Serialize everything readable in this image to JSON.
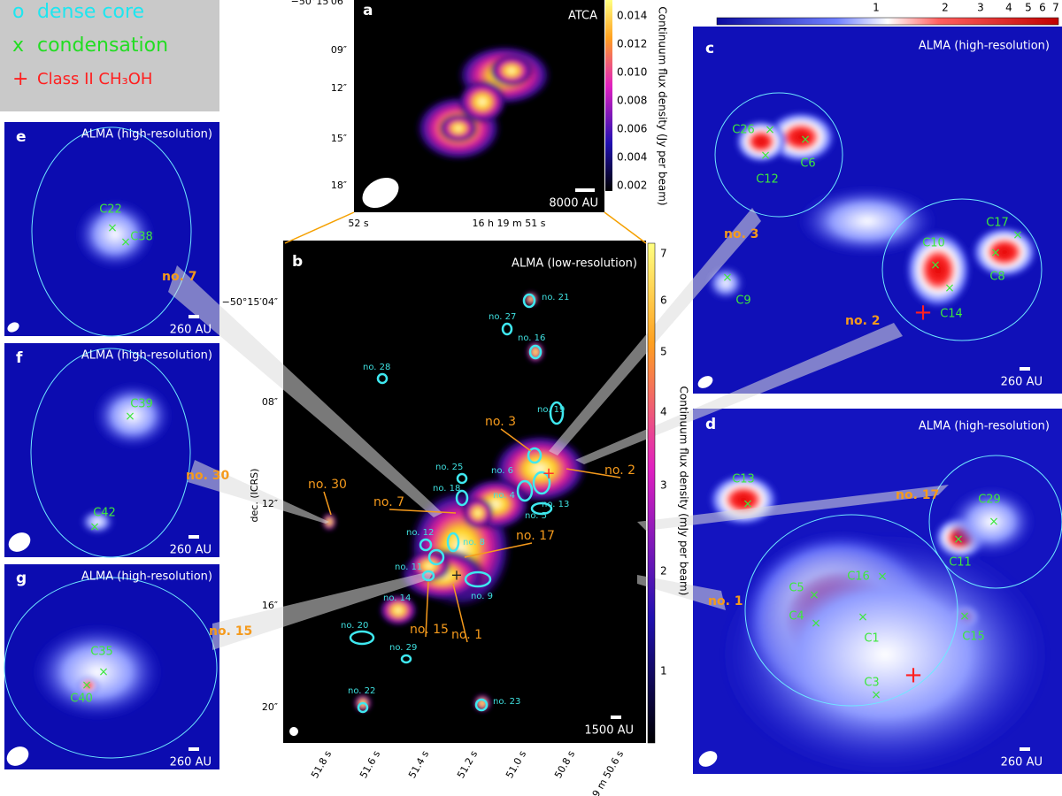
{
  "legend": {
    "items": [
      {
        "symbol": "o",
        "label": "dense core"
      },
      {
        "symbol": "x",
        "label": "condensation"
      },
      {
        "symbol": "+",
        "label": "Class II CH₃OH"
      }
    ]
  },
  "panels": {
    "a": {
      "label": "a",
      "title": "ATCA",
      "scale": "8000 AU",
      "colorbar_label": "Continuum flux density (Jy per beam)",
      "colorbar_ticks": [
        "0.014",
        "0.012",
        "0.010",
        "0.008",
        "0.006",
        "0.004",
        "0.002"
      ],
      "y_ticks": [
        "−50°15′06″",
        "09″",
        "12″",
        "15″",
        "18″"
      ],
      "x_ticks": [
        "52 s",
        "16 h 19 m 51 s"
      ]
    },
    "b": {
      "label": "b",
      "title": "ALMA (low-resolution)",
      "scale": "1500 AU",
      "colorbar_label": "Continuum flux density (mJy per beam)",
      "colorbar_ticks": [
        "7",
        "6",
        "5",
        "4",
        "3",
        "2",
        "1"
      ],
      "y_axis_label": "dec. (ICRS)",
      "y_ticks": [
        "−50°15′04″",
        "08″",
        "12″",
        "16″",
        "20″"
      ],
      "x_ticks": [
        "51.8 s",
        "51.6 s",
        "51.4 s",
        "51.2 s",
        "51.0 s",
        "50.8 s",
        "16 h 19 m 50.6 s"
      ],
      "cores": [
        "no. 21",
        "no. 27",
        "no. 16",
        "no. 28",
        "no. 19",
        "no. 25",
        "no. 18",
        "no. 6",
        "no. 4",
        "no. 5",
        "no. 13",
        "no. 12",
        "no. 8",
        "no. 11",
        "no. 9",
        "no. 14",
        "no. 20",
        "no. 29",
        "no. 22",
        "no. 23"
      ],
      "highlighted": [
        "no. 3",
        "no. 2",
        "no. 30",
        "no. 7",
        "no. 17",
        "no. 15",
        "no. 1"
      ]
    },
    "c": {
      "label": "c",
      "title": "ALMA (high-resolution)",
      "scale": "260 AU",
      "colorbar_ticks": [
        "1",
        "2",
        "3",
        "4",
        "5",
        "6",
        "7"
      ],
      "sources": [
        "C26",
        "C6",
        "C12",
        "C17",
        "C10",
        "C8",
        "C9",
        "C14"
      ],
      "cores": [
        "no. 3",
        "no. 2"
      ]
    },
    "d": {
      "label": "d",
      "title": "ALMA (high-resolution)",
      "scale": "260 AU",
      "sources": [
        "C13",
        "C29",
        "C11",
        "C16",
        "C5",
        "C4",
        "C1",
        "C15",
        "C3"
      ],
      "cores": [
        "no. 17",
        "no. 1"
      ]
    },
    "e": {
      "label": "e",
      "title": "ALMA (high-resolution)",
      "scale": "260 AU",
      "sources": [
        "C22",
        "C38"
      ],
      "cores": [
        "no. 7"
      ]
    },
    "f": {
      "label": "f",
      "title": "ALMA (high-resolution)",
      "scale": "260 AU",
      "sources": [
        "C39",
        "C42"
      ],
      "cores": [
        "no. 30"
      ]
    },
    "g": {
      "label": "g",
      "title": "ALMA (high-resolution)",
      "scale": "260 AU",
      "sources": [
        "C35",
        "C40"
      ],
      "cores": [
        "no. 15"
      ]
    }
  }
}
